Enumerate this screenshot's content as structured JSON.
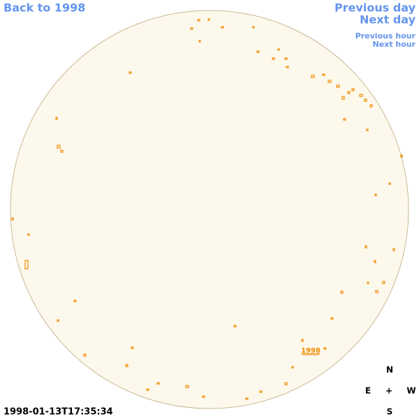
{
  "nav": {
    "back": "Back to 1998",
    "previous_day": "Previous day",
    "next_day": "Next day",
    "previous_hour": "Previous hour",
    "next_hour": "Next hour"
  },
  "disk_label": "1998",
  "compass": {
    "north": "N",
    "east": "E",
    "center": "+",
    "west": "W",
    "south": "S"
  },
  "timestamp": "1998-01-13T17:35:34"
}
